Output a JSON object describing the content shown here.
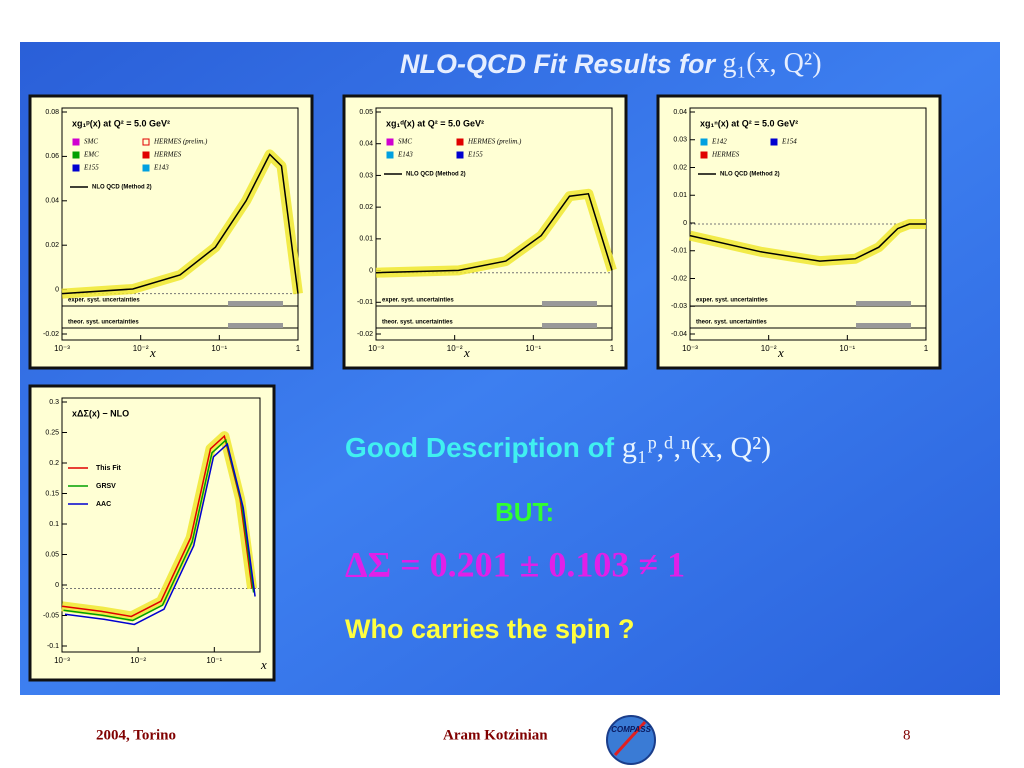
{
  "header": {
    "title": "NLO-QCD Fit Results for ",
    "title_math": "g₁(x, Q²)"
  },
  "panels": [
    {
      "title": "xg₁ᵖ(x) at Q² = 5.0 GeV²",
      "legend": [
        {
          "label": "SMC",
          "color": "#d000d0",
          "marker": "tri-down"
        },
        {
          "label": "HERMES (prelim.)",
          "color": "#e00000",
          "marker": "open-square"
        },
        {
          "label": "EMC",
          "color": "#00a000",
          "marker": "star"
        },
        {
          "label": "HERMES",
          "color": "#e00000",
          "marker": "square"
        },
        {
          "label": "E155",
          "color": "#0000d0",
          "marker": "circle"
        },
        {
          "label": "E143",
          "color": "#00a0e0",
          "marker": "tri-up"
        }
      ],
      "fit_label": "NLO QCD (Method 2)",
      "bands": [
        "exper. syst. uncertainties",
        "theor. syst. uncertainties"
      ],
      "yticks": [
        "0.08",
        "0.06",
        "0.04",
        "0.02",
        "0",
        "-0.02"
      ],
      "xticks": [
        "10⁻³",
        "10⁻²",
        "10⁻¹",
        "1"
      ],
      "xlabel": "x"
    },
    {
      "title": "xg₁ᵈ(x) at Q² = 5.0 GeV²",
      "legend": [
        {
          "label": "SMC",
          "color": "#d000d0",
          "marker": "tri-down"
        },
        {
          "label": "HERMES (prelim.)",
          "color": "#e00000",
          "marker": "square"
        },
        {
          "label": "E143",
          "color": "#00a0e0",
          "marker": "tri-up"
        },
        {
          "label": "E155",
          "color": "#0000d0",
          "marker": "circle"
        }
      ],
      "fit_label": "NLO QCD (Method 2)",
      "bands": [
        "exper. syst. uncertainties",
        "theor. syst. uncertainties"
      ],
      "yticks": [
        "0.05",
        "0.04",
        "0.03",
        "0.02",
        "0.01",
        "0",
        "-0.01",
        "-0.02"
      ],
      "xticks": [
        "10⁻³",
        "10⁻²",
        "10⁻¹",
        "1"
      ],
      "xlabel": "x"
    },
    {
      "title": "xg₁ⁿ(x) at Q² = 5.0 GeV²",
      "legend": [
        {
          "label": "E142",
          "color": "#00a0e0",
          "marker": "tri-up"
        },
        {
          "label": "E154",
          "color": "#0000d0",
          "marker": "circle"
        },
        {
          "label": "HERMES",
          "color": "#e00000",
          "marker": "square"
        }
      ],
      "fit_label": "NLO QCD (Method 2)",
      "bands": [
        "exper. syst. uncertainties",
        "theor. syst. uncertainties"
      ],
      "yticks": [
        "0.04",
        "0.03",
        "0.02",
        "0.01",
        "0",
        "-0.01",
        "-0.02",
        "-0.03",
        "-0.04"
      ],
      "xticks": [
        "10⁻³",
        "10⁻²",
        "10⁻¹",
        "1"
      ],
      "xlabel": "x"
    },
    {
      "title": "xΔΣ(x) − NLO",
      "legend": [
        {
          "label": "This Fit",
          "color": "#e00000",
          "marker": "line"
        },
        {
          "label": "GRSV",
          "color": "#00a000",
          "marker": "line"
        },
        {
          "label": "AAC",
          "color": "#0000d0",
          "marker": "line"
        }
      ],
      "yticks": [
        "0.3",
        "0.25",
        "0.2",
        "0.15",
        "0.1",
        "0.05",
        "0",
        "-0.05",
        "-0.1"
      ],
      "xticks": [
        "10⁻³",
        "10⁻²",
        "10⁻¹"
      ],
      "xlabel": "x"
    }
  ],
  "body": {
    "line1": "Good Description of ",
    "line1_math": "g₁ᵖ,ᵈ,ⁿ(x, Q²)",
    "but": "BUT:",
    "equation": "ΔΣ = 0.201 ± 0.103 ≠ 1",
    "question": "Who carries the spin ?"
  },
  "footer": {
    "left": "2004, Torino",
    "center": "Aram Kotzinian",
    "logo": "COMPASS",
    "page": "8"
  }
}
